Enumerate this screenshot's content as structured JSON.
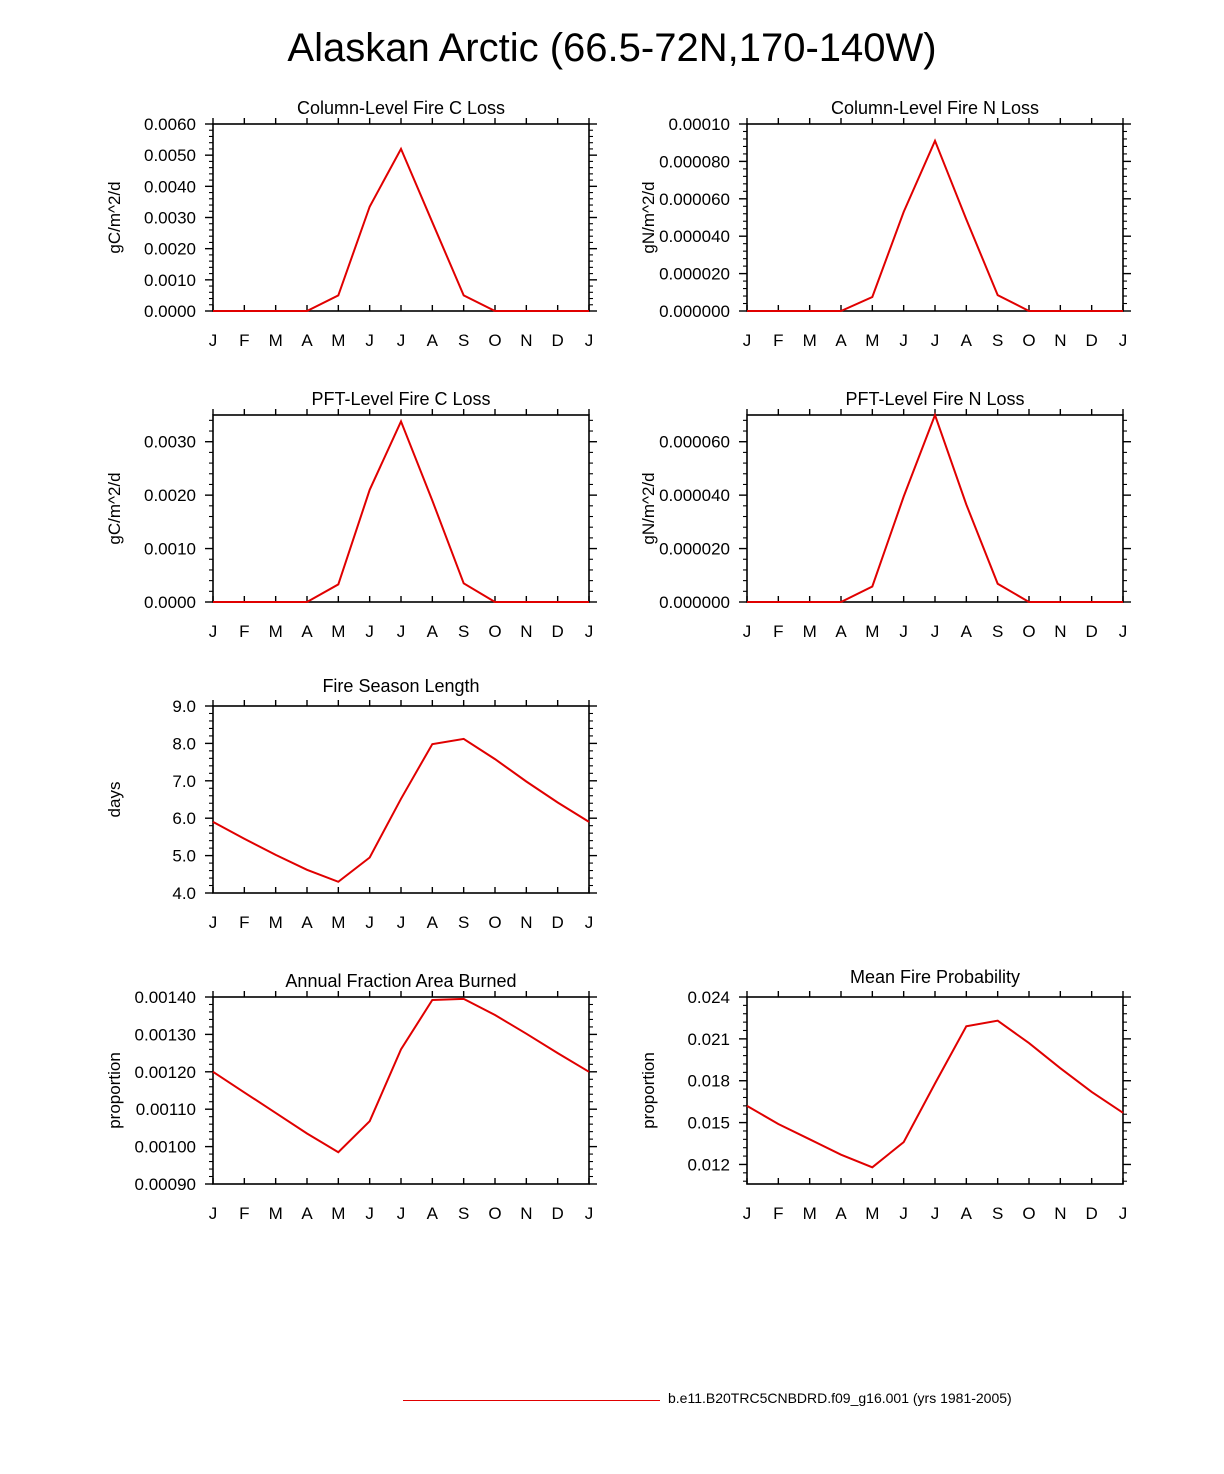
{
  "title": "Alaskan Arctic (66.5-72N,170-140W)",
  "legend": {
    "label": "b.e11.B20TRC5CNBDRD.f09_g16.001 (yrs 1981-2005)",
    "color": "#e00000"
  },
  "line_color": "#e00000",
  "chart_data": [
    {
      "type": "line",
      "title": "Column-Level Fire C Loss",
      "ylabel": "gC/m^2/d",
      "categories": [
        "J",
        "F",
        "M",
        "A",
        "M",
        "J",
        "J",
        "A",
        "S",
        "O",
        "N",
        "D",
        "J"
      ],
      "values": [
        0,
        0,
        0,
        0,
        0.0005,
        0.00335,
        0.0052,
        0.00285,
        0.0005,
        0,
        0,
        0,
        0
      ],
      "ylim": [
        0,
        0.006
      ],
      "yticks": [
        "0.0000",
        "0.0010",
        "0.0020",
        "0.0030",
        "0.0040",
        "0.0050",
        "0.0060"
      ]
    },
    {
      "type": "line",
      "title": "Column-Level Fire N Loss",
      "ylabel": "gN/m^2/d",
      "categories": [
        "J",
        "F",
        "M",
        "A",
        "M",
        "J",
        "J",
        "A",
        "S",
        "O",
        "N",
        "D",
        "J"
      ],
      "values": [
        0,
        0,
        0,
        0,
        7.5e-06,
        5.3e-05,
        9.1e-05,
        4.9e-05,
        8.5e-06,
        0,
        0,
        0,
        0
      ],
      "ylim": [
        0,
        0.0001
      ],
      "yticks": [
        "0.000000",
        "0.000020",
        "0.000040",
        "0.000060",
        "0.000080",
        "0.00010"
      ]
    },
    {
      "type": "line",
      "title": "PFT-Level Fire C Loss",
      "ylabel": "gC/m^2/d",
      "categories": [
        "J",
        "F",
        "M",
        "A",
        "M",
        "J",
        "J",
        "A",
        "S",
        "O",
        "N",
        "D",
        "J"
      ],
      "values": [
        0,
        0,
        0,
        0,
        0.00033,
        0.0021,
        0.00338,
        0.0019,
        0.00035,
        0,
        0,
        0,
        0
      ],
      "ylim": [
        0,
        0.0035
      ],
      "yticks": [
        "0.0000",
        "0.0010",
        "0.0020",
        "0.0030"
      ]
    },
    {
      "type": "line",
      "title": "PFT-Level Fire N Loss",
      "ylabel": "gN/m^2/d",
      "categories": [
        "J",
        "F",
        "M",
        "A",
        "M",
        "J",
        "J",
        "A",
        "S",
        "O",
        "N",
        "D",
        "J"
      ],
      "values": [
        0,
        0,
        0,
        0,
        5.8e-06,
        3.95e-05,
        7e-05,
        3.65e-05,
        6.8e-06,
        0,
        0,
        0,
        0
      ],
      "ylim": [
        0,
        7e-05
      ],
      "yticks": [
        "0.000000",
        "0.000020",
        "0.000040",
        "0.000060"
      ]
    },
    {
      "type": "line",
      "title": "Fire Season Length",
      "ylabel": "days",
      "categories": [
        "J",
        "F",
        "M",
        "A",
        "M",
        "J",
        "J",
        "A",
        "S",
        "O",
        "N",
        "D",
        "J"
      ],
      "values": [
        5.9,
        5.45,
        5.02,
        4.62,
        4.3,
        4.95,
        6.52,
        7.98,
        8.12,
        7.58,
        6.98,
        6.42,
        5.9
      ],
      "ylim": [
        4.0,
        9.0
      ],
      "yticks": [
        "4.0",
        "5.0",
        "6.0",
        "7.0",
        "8.0",
        "9.0"
      ]
    },
    {
      "type": "line",
      "title": "Annual Fraction Area Burned",
      "ylabel": "proportion",
      "categories": [
        "J",
        "F",
        "M",
        "A",
        "M",
        "J",
        "J",
        "A",
        "S",
        "O",
        "N",
        "D",
        "J"
      ],
      "values": [
        0.0012,
        0.001145,
        0.00109,
        0.001035,
        0.000985,
        0.001068,
        0.00126,
        0.001392,
        0.001395,
        0.001352,
        0.001302,
        0.00125,
        0.0012
      ],
      "ylim": [
        0.0009,
        0.0014
      ],
      "yticks": [
        "0.00090",
        "0.00100",
        "0.00110",
        "0.00120",
        "0.00130",
        "0.00140"
      ]
    },
    {
      "type": "line",
      "title": "Mean Fire Probability",
      "ylabel": "proportion",
      "categories": [
        "J",
        "F",
        "M",
        "A",
        "M",
        "J",
        "J",
        "A",
        "S",
        "O",
        "N",
        "D",
        "J"
      ],
      "values": [
        0.0162,
        0.0149,
        0.0138,
        0.0127,
        0.0118,
        0.0136,
        0.0178,
        0.0219,
        0.0223,
        0.0207,
        0.0189,
        0.0172,
        0.0157
      ],
      "ylim": [
        0.0106,
        0.024
      ],
      "yticks": [
        "0.012",
        "0.015",
        "0.018",
        "0.021",
        "0.024"
      ],
      "ytick_values": [
        0.012,
        0.015,
        0.018,
        0.021,
        0.024
      ]
    }
  ]
}
